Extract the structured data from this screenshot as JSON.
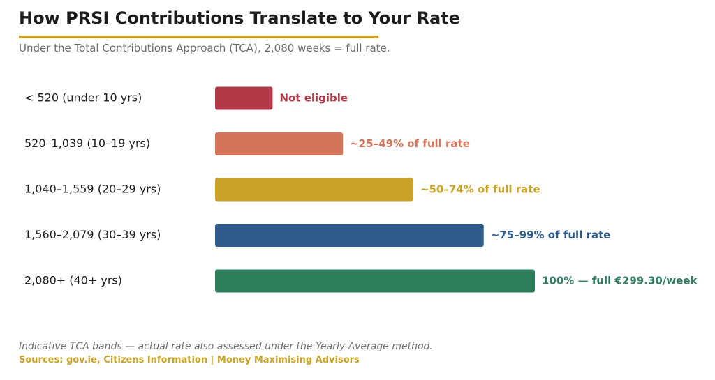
{
  "header": {
    "title": "How PRSI Contributions Translate to Your Rate",
    "subtitle": "Under the Total Contributions Approach (TCA), 2,080 weeks = full rate."
  },
  "footer": {
    "note": "Indicative TCA bands — actual rate also assessed under the Yearly Average method.",
    "sources": "Sources: gov.ie, Citizens Information  |  Money Maximising Advisors"
  },
  "colors": {
    "accent": "#c9a227",
    "title": "#1c1c1c",
    "subtitle": "#6b6b6b"
  },
  "chart_data": {
    "type": "bar",
    "orientation": "horizontal",
    "categories": [
      "< 520 (under 10 yrs)",
      "520–1,039 (10–19 yrs)",
      "1,040–1,559 (20–29 yrs)",
      "1,560–2,079 (30–39 yrs)",
      "2,080+ (40+ yrs)"
    ],
    "values": [
      18,
      40,
      62,
      84,
      100
    ],
    "value_labels": [
      "Not eligible",
      "~25–49% of full rate",
      "~50–74% of full rate",
      "~75–99% of full rate",
      "100% — full €299.30/week"
    ],
    "colors": [
      "#b23a48",
      "#d4745a",
      "#c9a227",
      "#2e5b8a",
      "#2e7d5b"
    ],
    "xlim": [
      0,
      100
    ],
    "grid": false,
    "legend": "none"
  }
}
